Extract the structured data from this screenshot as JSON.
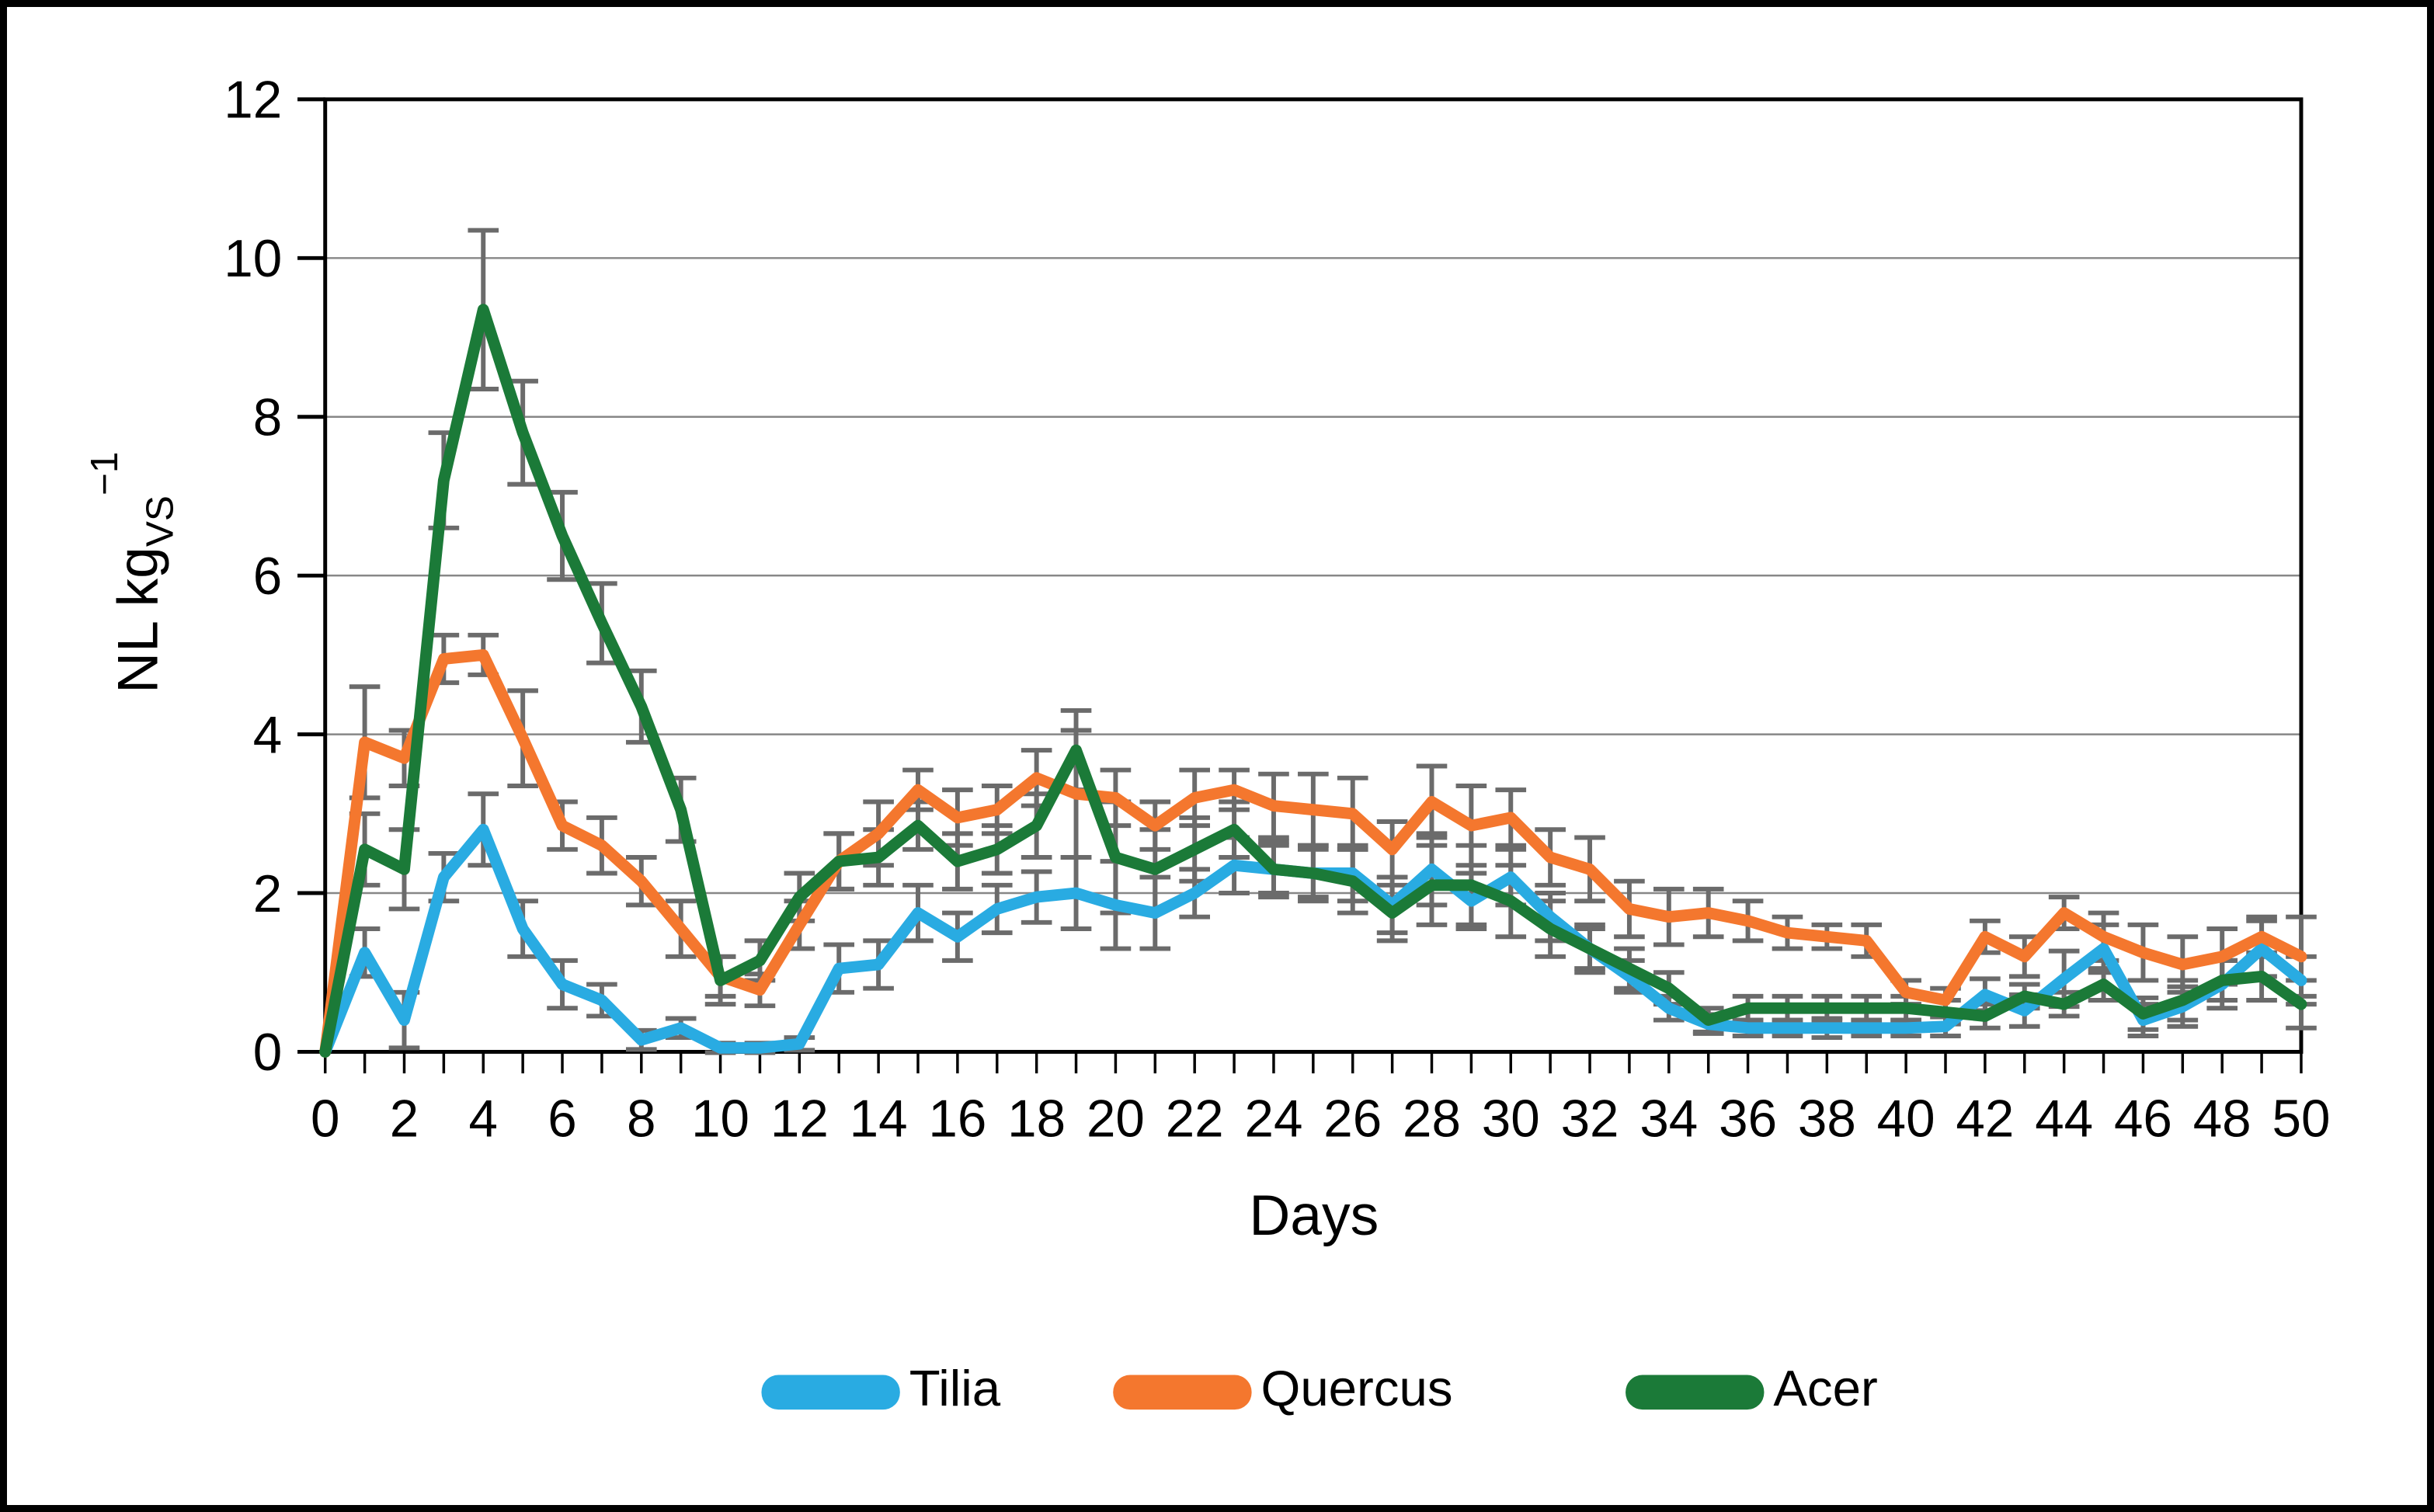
{
  "figure": {
    "background": "#ffffff",
    "border_color": "#000000"
  },
  "chart_data": {
    "type": "line",
    "title": "",
    "xlabel": "Days",
    "ylabel_text": "NL kgVS-1",
    "ylabel_parts": {
      "prefix": "NL kg",
      "sub": "VS",
      "sup": "−1"
    },
    "x": [
      0,
      1,
      2,
      3,
      4,
      5,
      6,
      7,
      8,
      9,
      10,
      11,
      12,
      13,
      14,
      15,
      16,
      17,
      18,
      19,
      20,
      21,
      22,
      23,
      24,
      25,
      26,
      27,
      28,
      29,
      30,
      31,
      32,
      33,
      34,
      35,
      36,
      37,
      38,
      39,
      40,
      41,
      42,
      43,
      44,
      45,
      46,
      47,
      48,
      49,
      50
    ],
    "xlim": [
      0,
      50
    ],
    "ylim": [
      0,
      12
    ],
    "x_label_step": 2,
    "x_minor_tick_step": 1,
    "y_tick_step": 2,
    "grid": "horizontal",
    "gridline_color": "#878787",
    "axis_color": "#000000",
    "error_bar_color": "#6B6B6B",
    "legend_position": "bottom-center",
    "series": [
      {
        "name": "Tilia",
        "color": "#29ABE2",
        "values": [
          0,
          1.25,
          0.4,
          2.2,
          2.8,
          1.55,
          0.85,
          0.65,
          0.15,
          0.3,
          0.05,
          0.05,
          0.1,
          1.05,
          1.1,
          1.75,
          1.45,
          1.8,
          1.95,
          2.0,
          1.85,
          1.75,
          2.0,
          2.35,
          2.3,
          2.25,
          2.25,
          1.85,
          2.3,
          1.9,
          2.2,
          1.7,
          1.3,
          0.95,
          0.55,
          0.35,
          0.3,
          0.3,
          0.3,
          0.3,
          0.3,
          0.32,
          0.72,
          0.52,
          0.92,
          1.3,
          0.4,
          0.57,
          0.85,
          1.3,
          0.9
        ],
        "errors": [
          0,
          0.3,
          0.35,
          0.3,
          0.45,
          0.35,
          0.3,
          0.2,
          0.12,
          0.12,
          0.06,
          0.06,
          0.08,
          0.3,
          0.3,
          0.35,
          0.3,
          0.3,
          0.32,
          0.45,
          0.55,
          0.45,
          0.3,
          0.35,
          0.3,
          0.3,
          0.35,
          0.35,
          0.45,
          0.35,
          0.35,
          0.3,
          0.25,
          0.2,
          0.15,
          0.12,
          0.1,
          0.1,
          0.12,
          0.1,
          0.1,
          0.12,
          0.2,
          0.2,
          0.35,
          0.3,
          0.2,
          0.25,
          0.3,
          0.35,
          0.3
        ]
      },
      {
        "name": "Quercus",
        "color": "#F4772E",
        "values": [
          0,
          3.9,
          3.7,
          4.95,
          5.0,
          3.95,
          2.85,
          2.6,
          2.15,
          1.55,
          0.95,
          0.78,
          1.6,
          2.4,
          2.75,
          3.3,
          2.95,
          3.05,
          3.45,
          3.25,
          3.2,
          2.85,
          3.2,
          3.3,
          3.1,
          3.05,
          3.0,
          2.55,
          3.15,
          2.85,
          2.95,
          2.45,
          2.3,
          1.8,
          1.7,
          1.75,
          1.65,
          1.5,
          1.45,
          1.4,
          0.75,
          0.65,
          1.45,
          1.2,
          1.75,
          1.45,
          1.25,
          1.1,
          1.2,
          1.45,
          1.2
        ],
        "errors": [
          0,
          0.7,
          0.35,
          0.3,
          0.25,
          0.6,
          0.3,
          0.35,
          0.3,
          0.35,
          0.25,
          0.2,
          0.3,
          0.35,
          0.4,
          0.25,
          0.35,
          0.3,
          0.35,
          0.8,
          0.35,
          0.3,
          0.35,
          0.25,
          0.4,
          0.45,
          0.45,
          0.35,
          0.45,
          0.5,
          0.35,
          0.35,
          0.4,
          0.35,
          0.35,
          0.3,
          0.25,
          0.2,
          0.15,
          0.2,
          0.15,
          0.15,
          0.2,
          0.25,
          0.2,
          0.3,
          0.35,
          0.35,
          0.35,
          0.25,
          0.5
        ]
      },
      {
        "name": "Acer",
        "color": "#1B7A38",
        "values": [
          0,
          2.55,
          2.3,
          7.2,
          9.35,
          7.8,
          6.5,
          5.4,
          4.35,
          3.05,
          0.9,
          1.15,
          1.95,
          2.4,
          2.45,
          2.85,
          2.4,
          2.55,
          2.85,
          3.8,
          2.45,
          2.3,
          2.55,
          2.8,
          2.3,
          2.25,
          2.15,
          1.75,
          2.1,
          2.1,
          1.9,
          1.55,
          1.3,
          1.05,
          0.8,
          0.4,
          0.55,
          0.55,
          0.55,
          0.55,
          0.55,
          0.5,
          0.45,
          0.7,
          0.6,
          0.85,
          0.48,
          0.65,
          0.9,
          0.95,
          0.6
        ],
        "errors": [
          0,
          0.45,
          0.5,
          0.6,
          1.0,
          0.65,
          0.55,
          0.5,
          0.45,
          0.4,
          0.3,
          0.25,
          0.3,
          0.35,
          0.35,
          0.3,
          0.35,
          0.3,
          0.4,
          0.5,
          0.7,
          0.5,
          0.4,
          0.35,
          0.35,
          0.35,
          0.4,
          0.35,
          0.5,
          0.5,
          0.45,
          0.35,
          0.3,
          0.25,
          0.2,
          0.15,
          0.15,
          0.15,
          0.15,
          0.15,
          0.15,
          0.15,
          0.15,
          0.15,
          0.15,
          0.2,
          0.2,
          0.25,
          0.25,
          0.3,
          0.3
        ]
      }
    ],
    "y_tick_labels": [
      "0",
      "2",
      "4",
      "6",
      "8",
      "10",
      "12"
    ],
    "x_tick_labels": [
      "0",
      "2",
      "4",
      "6",
      "8",
      "10",
      "12",
      "14",
      "16",
      "18",
      "20",
      "22",
      "24",
      "26",
      "28",
      "30",
      "32",
      "34",
      "36",
      "38",
      "40",
      "42",
      "44",
      "46",
      "48",
      "50"
    ]
  }
}
